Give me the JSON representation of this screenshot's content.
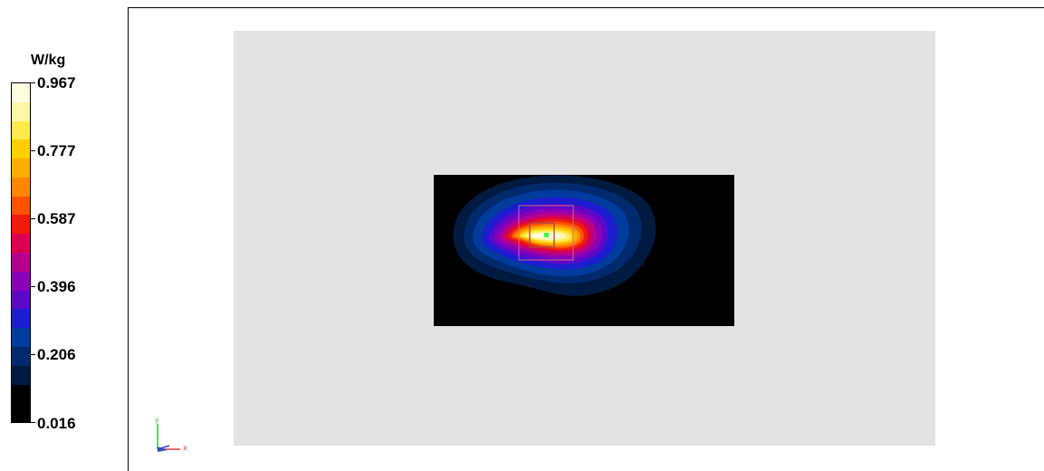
{
  "legend": {
    "unit": "W/kg",
    "ticks": [
      "0.967",
      "0.777",
      "0.587",
      "0.396",
      "0.206",
      "0.016"
    ],
    "colors_top_to_bottom": [
      "#fffde0",
      "#fff6a6",
      "#ffe94d",
      "#ffd000",
      "#ffad00",
      "#ff8800",
      "#ff5200",
      "#ee1c0b",
      "#d8004f",
      "#b5008e",
      "#8a00b8",
      "#5c08c8",
      "#1c1cd0",
      "#003c9e",
      "#002a6e",
      "#001a40",
      "#000000",
      "#000000"
    ]
  },
  "axes_indicator": {
    "y_label": "y",
    "x_label": "x"
  },
  "colors": {
    "phantom_background": "#e3e3e3",
    "scan_area": "#000000",
    "probe_marker": "#3fff3f"
  }
}
